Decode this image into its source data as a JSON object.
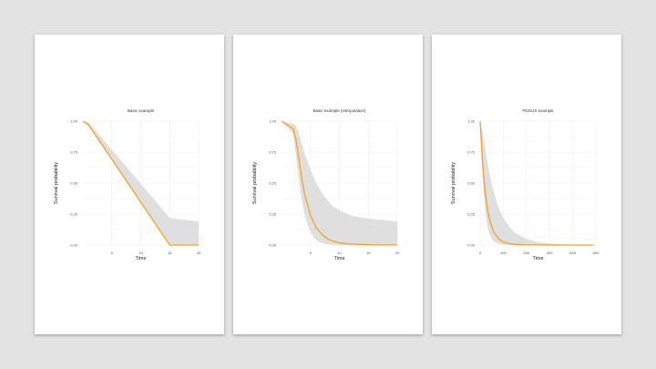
{
  "colors": {
    "curve": "#f2a51f",
    "band": "#d9d9d9",
    "page": "#ffffff",
    "background": "#e3e3e3"
  },
  "chart_data": [
    {
      "type": "line",
      "title": "Basic example",
      "xlabel": "Time",
      "ylabel": "Survival probability",
      "xlim": [
        0,
        20
      ],
      "ylim": [
        0,
        1
      ],
      "xticks": [
        5,
        10,
        15,
        20
      ],
      "yticks": [
        0,
        0.25,
        0.5,
        0.75,
        1
      ],
      "ytick_labels": [
        "0.00",
        "0.25",
        "0.50",
        "0.75",
        "1.00"
      ],
      "grid": true,
      "series": [
        {
          "x": [
            0,
            1,
            15,
            20
          ],
          "y": [
            1.0,
            0.97,
            0.0,
            0.0
          ],
          "lower": [
            1.0,
            0.96,
            0.0,
            0.0
          ],
          "upper": [
            1.0,
            0.99,
            0.22,
            0.19
          ]
        }
      ]
    },
    {
      "type": "line",
      "title": "Basic example (interpolation)",
      "xlabel": "Time",
      "ylabel": "Survival probability",
      "xlim": [
        0,
        20
      ],
      "ylim": [
        0,
        1
      ],
      "xticks": [
        5,
        10,
        15,
        20
      ],
      "yticks": [
        0,
        0.25,
        0.5,
        0.75,
        1
      ],
      "ytick_labels": [
        "0.00",
        "0.25",
        "0.50",
        "0.75",
        "1.00"
      ],
      "grid": true,
      "series": [
        {
          "x": [
            0,
            1,
            2,
            2.5,
            3,
            3.5,
            4,
            5,
            6,
            7,
            8,
            9,
            10,
            12,
            14,
            16,
            18,
            20
          ],
          "y": [
            1.0,
            0.97,
            0.94,
            0.85,
            0.7,
            0.54,
            0.41,
            0.24,
            0.14,
            0.085,
            0.05,
            0.03,
            0.018,
            0.008,
            0.004,
            0.002,
            0.001,
            0.001
          ],
          "lower": [
            1.0,
            0.95,
            0.9,
            0.72,
            0.52,
            0.36,
            0.24,
            0.1,
            0.04,
            0.015,
            0.006,
            0.002,
            0.001,
            0.0,
            0.0,
            0.0,
            0.0,
            0.0
          ],
          "upper": [
            1.0,
            0.99,
            0.98,
            0.96,
            0.9,
            0.82,
            0.74,
            0.61,
            0.5,
            0.42,
            0.36,
            0.31,
            0.28,
            0.24,
            0.22,
            0.21,
            0.2,
            0.19
          ]
        }
      ]
    },
    {
      "type": "line",
      "title": "PDGUS example",
      "xlabel": "Time",
      "ylabel": "Survival probability",
      "xlim": [
        0,
        500
      ],
      "ylim": [
        0,
        1
      ],
      "xticks": [
        0,
        100,
        200,
        300,
        400,
        500
      ],
      "yticks": [
        0,
        0.25,
        0.5,
        0.75,
        1
      ],
      "ytick_labels": [
        "0.00",
        "0.25",
        "0.50",
        "0.75",
        "1.00"
      ],
      "grid": true,
      "series": [
        {
          "x": [
            0,
            10,
            20,
            30,
            40,
            50,
            60,
            80,
            100,
            125,
            150,
            200,
            250,
            300,
            350,
            400,
            450,
            490
          ],
          "y": [
            1.0,
            0.68,
            0.46,
            0.31,
            0.21,
            0.15,
            0.1,
            0.05,
            0.025,
            0.012,
            0.006,
            0.002,
            0.001,
            0.0,
            0.0,
            0.0,
            0.0,
            0.0
          ],
          "lower": [
            1.0,
            0.55,
            0.3,
            0.17,
            0.09,
            0.05,
            0.03,
            0.01,
            0.004,
            0.001,
            0.0,
            0.0,
            0.0,
            0.0,
            0.0,
            0.0,
            0.0,
            0.0
          ],
          "upper": [
            1.0,
            0.92,
            0.8,
            0.69,
            0.58,
            0.5,
            0.42,
            0.3,
            0.22,
            0.15,
            0.1,
            0.05,
            0.025,
            0.012,
            0.006,
            0.003,
            0.002,
            0.001
          ]
        }
      ]
    }
  ]
}
